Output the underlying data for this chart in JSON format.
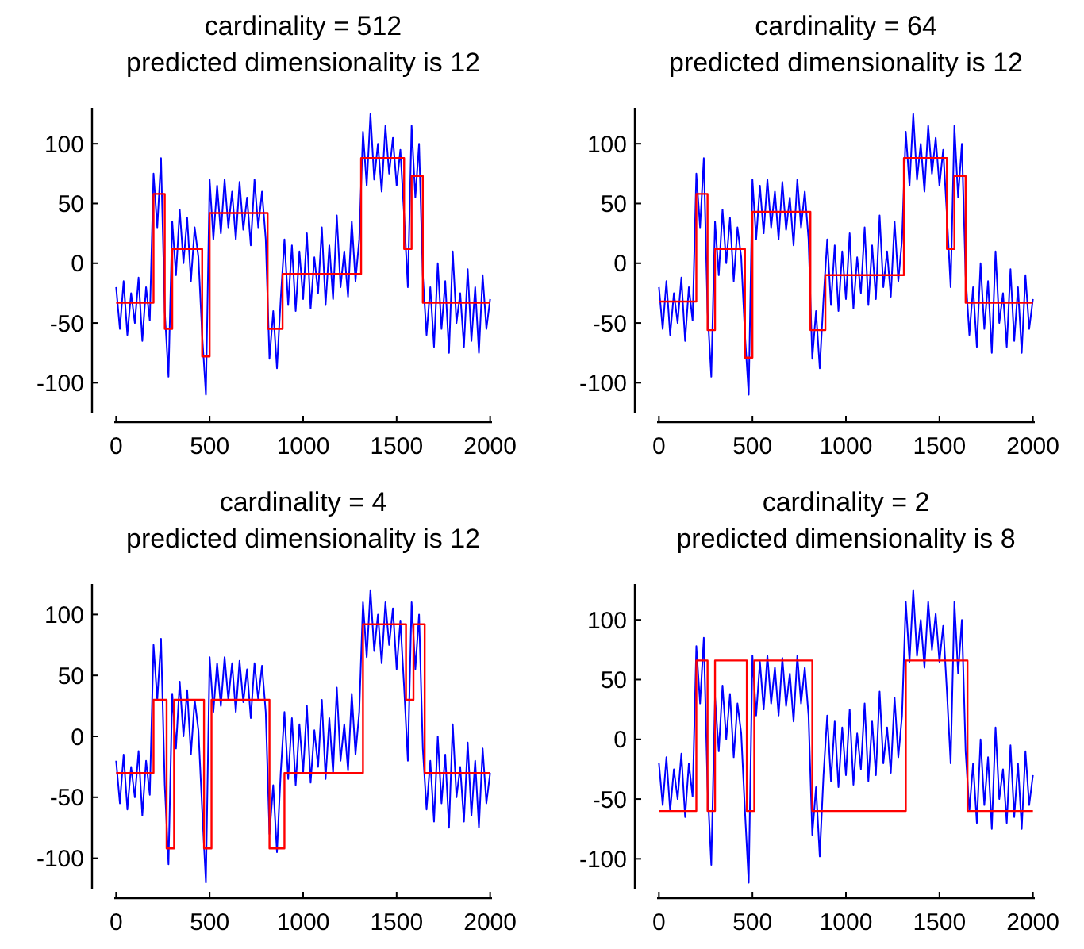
{
  "chart_data": [
    {
      "type": "line",
      "title": "cardinality = 512",
      "subtitle": "predicted dimensionality is 12",
      "xlim": [
        -10,
        2010
      ],
      "ylim": [
        -125,
        130
      ],
      "xticks": [
        0,
        500,
        1000,
        1500,
        2000
      ],
      "yticks": [
        -100,
        -50,
        0,
        50,
        100
      ],
      "grid": false,
      "series": [
        {
          "color": "#0000ff",
          "x": [
            0,
            20,
            40,
            60,
            80,
            100,
            120,
            140,
            160,
            180,
            200,
            220,
            240,
            260,
            280,
            300,
            320,
            340,
            360,
            380,
            400,
            420,
            440,
            460,
            480,
            500,
            520,
            540,
            560,
            580,
            600,
            620,
            640,
            660,
            680,
            700,
            720,
            740,
            760,
            780,
            800,
            820,
            840,
            860,
            880,
            900,
            920,
            940,
            960,
            980,
            1000,
            1020,
            1040,
            1060,
            1080,
            1100,
            1120,
            1140,
            1160,
            1180,
            1200,
            1220,
            1240,
            1260,
            1280,
            1300,
            1320,
            1340,
            1360,
            1380,
            1400,
            1420,
            1440,
            1460,
            1480,
            1500,
            1520,
            1540,
            1560,
            1580,
            1600,
            1620,
            1640,
            1660,
            1680,
            1700,
            1720,
            1740,
            1760,
            1780,
            1800,
            1820,
            1840,
            1860,
            1880,
            1900,
            1920,
            1940,
            1960,
            1980,
            2000
          ],
          "values": [
            -20,
            -55,
            -15,
            -60,
            -25,
            -50,
            -12,
            -65,
            -20,
            -48,
            75,
            30,
            88,
            -40,
            -95,
            35,
            -10,
            45,
            0,
            38,
            -15,
            30,
            5,
            -60,
            -110,
            70,
            20,
            65,
            25,
            70,
            30,
            60,
            20,
            68,
            28,
            55,
            15,
            70,
            30,
            60,
            20,
            -80,
            -40,
            -88,
            -30,
            20,
            -35,
            15,
            -40,
            10,
            -30,
            25,
            -38,
            5,
            -25,
            30,
            -35,
            15,
            -30,
            40,
            -20,
            10,
            -28,
            35,
            -15,
            20,
            110,
            65,
            125,
            70,
            100,
            60,
            115,
            75,
            105,
            65,
            95,
            40,
            -20,
            115,
            55,
            100,
            -10,
            -60,
            -20,
            -70,
            0,
            -55,
            -15,
            -75,
            10,
            -50,
            -25,
            -70,
            -5,
            -65,
            -20,
            -75,
            -10,
            -55,
            -30
          ]
        },
        {
          "type": "step",
          "color": "#ff0000",
          "x": [
            0,
            200,
            260,
            300,
            460,
            500,
            810,
            890,
            1310,
            1540,
            1580,
            1640,
            2000
          ],
          "values": [
            -33,
            58,
            -55,
            12,
            -78,
            42,
            -55,
            -9,
            88,
            12,
            73,
            -33,
            -33
          ]
        }
      ]
    },
    {
      "type": "line",
      "title": "cardinality = 64",
      "subtitle": "predicted dimensionality is 12",
      "xlim": [
        -10,
        2010
      ],
      "ylim": [
        -125,
        130
      ],
      "xticks": [
        0,
        500,
        1000,
        1500,
        2000
      ],
      "yticks": [
        -100,
        -50,
        0,
        50,
        100
      ],
      "grid": false,
      "series": [
        {
          "color": "#0000ff",
          "x": [
            0,
            20,
            40,
            60,
            80,
            100,
            120,
            140,
            160,
            180,
            200,
            220,
            240,
            260,
            280,
            300,
            320,
            340,
            360,
            380,
            400,
            420,
            440,
            460,
            480,
            500,
            520,
            540,
            560,
            580,
            600,
            620,
            640,
            660,
            680,
            700,
            720,
            740,
            760,
            780,
            800,
            820,
            840,
            860,
            880,
            900,
            920,
            940,
            960,
            980,
            1000,
            1020,
            1040,
            1060,
            1080,
            1100,
            1120,
            1140,
            1160,
            1180,
            1200,
            1220,
            1240,
            1260,
            1280,
            1300,
            1320,
            1340,
            1360,
            1380,
            1400,
            1420,
            1440,
            1460,
            1480,
            1500,
            1520,
            1540,
            1560,
            1580,
            1600,
            1620,
            1640,
            1660,
            1680,
            1700,
            1720,
            1740,
            1760,
            1780,
            1800,
            1820,
            1840,
            1860,
            1880,
            1900,
            1920,
            1940,
            1960,
            1980,
            2000
          ],
          "values": [
            -20,
            -55,
            -15,
            -60,
            -25,
            -50,
            -12,
            -65,
            -20,
            -48,
            75,
            30,
            88,
            -40,
            -95,
            35,
            -10,
            45,
            0,
            38,
            -15,
            30,
            5,
            -60,
            -110,
            70,
            20,
            65,
            25,
            70,
            30,
            60,
            20,
            68,
            28,
            55,
            15,
            70,
            30,
            60,
            20,
            -80,
            -40,
            -88,
            -30,
            20,
            -35,
            15,
            -40,
            10,
            -30,
            25,
            -38,
            5,
            -25,
            30,
            -35,
            15,
            -30,
            40,
            -20,
            10,
            -28,
            35,
            -15,
            20,
            110,
            65,
            125,
            70,
            100,
            60,
            115,
            75,
            105,
            65,
            95,
            40,
            -20,
            115,
            55,
            100,
            -10,
            -60,
            -20,
            -70,
            0,
            -55,
            -15,
            -75,
            10,
            -50,
            -25,
            -70,
            -5,
            -65,
            -20,
            -75,
            -10,
            -55,
            -30
          ]
        },
        {
          "type": "step",
          "color": "#ff0000",
          "x": [
            0,
            200,
            260,
            300,
            460,
            500,
            810,
            890,
            1310,
            1540,
            1580,
            1640,
            2000
          ],
          "values": [
            -32,
            58,
            -56,
            12,
            -79,
            43,
            -56,
            -10,
            88,
            12,
            73,
            -33,
            -33
          ]
        }
      ]
    },
    {
      "type": "line",
      "title": "cardinality = 4",
      "subtitle": "predicted dimensionality is 12",
      "xlim": [
        -10,
        2010
      ],
      "ylim": [
        -125,
        125
      ],
      "xticks": [
        0,
        500,
        1000,
        1500,
        2000
      ],
      "yticks": [
        -100,
        -50,
        0,
        50,
        100
      ],
      "grid": false,
      "series": [
        {
          "color": "#0000ff",
          "x": [
            0,
            20,
            40,
            60,
            80,
            100,
            120,
            140,
            160,
            180,
            200,
            220,
            240,
            260,
            280,
            300,
            320,
            340,
            360,
            380,
            400,
            420,
            440,
            460,
            480,
            500,
            520,
            540,
            560,
            580,
            600,
            620,
            640,
            660,
            680,
            700,
            720,
            740,
            760,
            780,
            800,
            820,
            840,
            860,
            880,
            900,
            920,
            940,
            960,
            980,
            1000,
            1020,
            1040,
            1060,
            1080,
            1100,
            1120,
            1140,
            1160,
            1180,
            1200,
            1220,
            1240,
            1260,
            1280,
            1300,
            1320,
            1340,
            1360,
            1380,
            1400,
            1420,
            1440,
            1460,
            1480,
            1500,
            1520,
            1540,
            1560,
            1580,
            1600,
            1620,
            1640,
            1660,
            1680,
            1700,
            1720,
            1740,
            1760,
            1780,
            1800,
            1820,
            1840,
            1860,
            1880,
            1900,
            1920,
            1940,
            1960,
            1980,
            2000
          ],
          "values": [
            -20,
            -55,
            -15,
            -60,
            -25,
            -50,
            -12,
            -65,
            -20,
            -48,
            75,
            30,
            80,
            -40,
            -105,
            35,
            -10,
            45,
            0,
            38,
            -15,
            30,
            5,
            -60,
            -120,
            65,
            20,
            60,
            25,
            65,
            30,
            60,
            20,
            62,
            28,
            55,
            15,
            60,
            30,
            58,
            20,
            -80,
            -40,
            -95,
            -30,
            20,
            -35,
            15,
            -40,
            10,
            -30,
            25,
            -38,
            5,
            -25,
            30,
            -35,
            15,
            -30,
            40,
            -20,
            10,
            -28,
            35,
            -15,
            20,
            110,
            65,
            120,
            70,
            100,
            60,
            110,
            75,
            105,
            55,
            95,
            40,
            -20,
            110,
            55,
            100,
            -10,
            -60,
            -20,
            -70,
            0,
            -55,
            -15,
            -75,
            10,
            -50,
            -25,
            -70,
            -5,
            -65,
            -20,
            -75,
            -10,
            -55,
            -30
          ]
        },
        {
          "type": "step",
          "color": "#ff0000",
          "x": [
            0,
            200,
            270,
            310,
            470,
            510,
            820,
            900,
            1320,
            1550,
            1590,
            1650,
            2000
          ],
          "values": [
            -30,
            30,
            -92,
            30,
            -92,
            30,
            -92,
            -30,
            92,
            30,
            92,
            -30,
            -30
          ]
        }
      ]
    },
    {
      "type": "line",
      "title": "cardinality = 2",
      "subtitle": "predicted dimensionality is 8",
      "xlim": [
        -10,
        2010
      ],
      "ylim": [
        -125,
        130
      ],
      "xticks": [
        0,
        500,
        1000,
        1500,
        2000
      ],
      "yticks": [
        -100,
        -50,
        0,
        50,
        100
      ],
      "grid": false,
      "series": [
        {
          "color": "#0000ff",
          "x": [
            0,
            20,
            40,
            60,
            80,
            100,
            120,
            140,
            160,
            180,
            200,
            220,
            240,
            260,
            280,
            300,
            320,
            340,
            360,
            380,
            400,
            420,
            440,
            460,
            480,
            500,
            520,
            540,
            560,
            580,
            600,
            620,
            640,
            660,
            680,
            700,
            720,
            740,
            760,
            780,
            800,
            820,
            840,
            860,
            880,
            900,
            920,
            940,
            960,
            980,
            1000,
            1020,
            1040,
            1060,
            1080,
            1100,
            1120,
            1140,
            1160,
            1180,
            1200,
            1220,
            1240,
            1260,
            1280,
            1300,
            1320,
            1340,
            1360,
            1380,
            1400,
            1420,
            1440,
            1460,
            1480,
            1500,
            1520,
            1540,
            1560,
            1580,
            1600,
            1620,
            1640,
            1660,
            1680,
            1700,
            1720,
            1740,
            1760,
            1780,
            1800,
            1820,
            1840,
            1860,
            1880,
            1900,
            1920,
            1940,
            1960,
            1980,
            2000
          ],
          "values": [
            -20,
            -55,
            -15,
            -60,
            -25,
            -50,
            -12,
            -65,
            -20,
            -48,
            78,
            30,
            85,
            -40,
            -105,
            35,
            -10,
            45,
            0,
            38,
            -15,
            30,
            5,
            -60,
            -120,
            70,
            20,
            65,
            25,
            70,
            30,
            60,
            20,
            68,
            28,
            55,
            15,
            70,
            30,
            60,
            20,
            -80,
            -40,
            -98,
            -30,
            20,
            -35,
            15,
            -40,
            10,
            -30,
            25,
            -38,
            5,
            -25,
            30,
            -35,
            15,
            -30,
            40,
            -20,
            10,
            -28,
            35,
            -15,
            20,
            115,
            65,
            125,
            70,
            100,
            60,
            115,
            75,
            105,
            65,
            95,
            40,
            -20,
            115,
            55,
            100,
            -10,
            -60,
            -20,
            -70,
            0,
            -55,
            -15,
            -75,
            10,
            -50,
            -25,
            -70,
            -5,
            -65,
            -20,
            -75,
            -10,
            -55,
            -30
          ]
        },
        {
          "type": "step",
          "color": "#ff0000",
          "x": [
            0,
            200,
            260,
            300,
            470,
            510,
            820,
            1320,
            1650,
            2000
          ],
          "values": [
            -60,
            66,
            -60,
            66,
            -60,
            66,
            -60,
            66,
            -60,
            -60
          ]
        }
      ]
    }
  ]
}
